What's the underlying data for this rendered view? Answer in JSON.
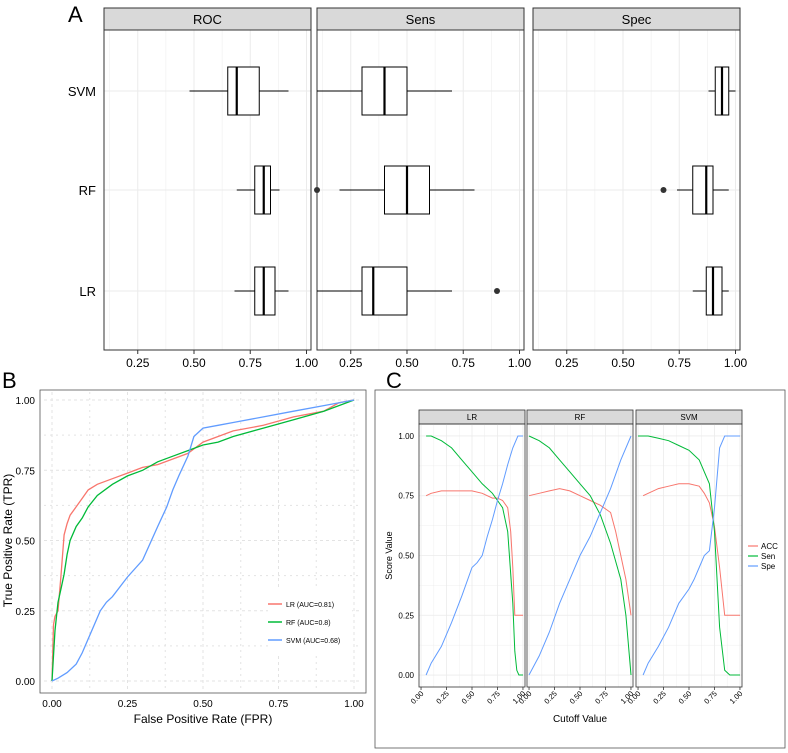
{
  "colors": {
    "strip_bg": "#d9d9d9",
    "grid": "#ebebeb",
    "lr": "#f8766d",
    "rf": "#00ba38",
    "svm": "#619cff",
    "box": "#000000"
  },
  "panel_labels": {
    "a": "A",
    "b": "B",
    "c": "C"
  },
  "chart_data": [
    {
      "id": "A",
      "type": "boxplot",
      "orientation": "horizontal",
      "facets": [
        "ROC",
        "Sens",
        "Spec"
      ],
      "categories": [
        "SVM",
        "RF",
        "LR"
      ],
      "xlim": [
        0.1,
        1.02
      ],
      "xticks": [
        "0.25",
        "0.50",
        "0.75",
        "1.00"
      ],
      "xtick_values": [
        0.25,
        0.5,
        0.75,
        1.0
      ],
      "boxes": {
        "ROC": {
          "SVM": {
            "whislo": 0.48,
            "q1": 0.65,
            "med": 0.69,
            "q3": 0.79,
            "whishi": 0.92,
            "outliers": []
          },
          "RF": {
            "whislo": 0.69,
            "q1": 0.77,
            "med": 0.81,
            "q3": 0.84,
            "whishi": 0.88,
            "outliers": []
          },
          "LR": {
            "whislo": 0.68,
            "q1": 0.77,
            "med": 0.81,
            "q3": 0.86,
            "whishi": 0.92,
            "outliers": []
          }
        },
        "Sens": {
          "SVM": {
            "whislo": 0.1,
            "q1": 0.3,
            "med": 0.4,
            "q3": 0.5,
            "whishi": 0.7,
            "outliers": []
          },
          "RF": {
            "whislo": 0.2,
            "q1": 0.4,
            "med": 0.5,
            "q3": 0.6,
            "whishi": 0.8,
            "outliers": [
              0.1
            ]
          },
          "LR": {
            "whislo": 0.1,
            "q1": 0.3,
            "med": 0.35,
            "q3": 0.5,
            "whishi": 0.7,
            "outliers": [
              0.9
            ]
          }
        },
        "Spec": {
          "SVM": {
            "whislo": 0.88,
            "q1": 0.91,
            "med": 0.94,
            "q3": 0.97,
            "whishi": 1.0,
            "outliers": []
          },
          "RF": {
            "whislo": 0.74,
            "q1": 0.81,
            "med": 0.87,
            "q3": 0.9,
            "whishi": 0.97,
            "outliers": [
              0.68
            ]
          },
          "LR": {
            "whislo": 0.81,
            "q1": 0.87,
            "med": 0.9,
            "q3": 0.94,
            "whishi": 0.97,
            "outliers": []
          }
        }
      }
    },
    {
      "id": "B",
      "type": "line",
      "xlabel": "False Positive Rate (FPR)",
      "ylabel": "True Positive Rate (TPR)",
      "xlim": [
        0,
        1
      ],
      "ylim": [
        0,
        1
      ],
      "ticks": [
        "0.00",
        "0.25",
        "0.50",
        "0.75",
        "1.00"
      ],
      "tick_values": [
        0,
        0.25,
        0.5,
        0.75,
        1.0
      ],
      "legend_position": "bottom-right",
      "series": [
        {
          "name": "LR (AUC=0.81)",
          "key": "lr",
          "x": [
            0,
            0.005,
            0.01,
            0.02,
            0.03,
            0.04,
            0.05,
            0.06,
            0.08,
            0.1,
            0.12,
            0.15,
            0.2,
            0.25,
            0.3,
            0.35,
            0.4,
            0.45,
            0.5,
            0.55,
            0.6,
            0.7,
            0.8,
            0.9,
            0.95,
            1.0
          ],
          "y": [
            0,
            0.2,
            0.23,
            0.25,
            0.38,
            0.52,
            0.56,
            0.59,
            0.62,
            0.65,
            0.68,
            0.7,
            0.72,
            0.74,
            0.76,
            0.77,
            0.79,
            0.81,
            0.85,
            0.87,
            0.89,
            0.91,
            0.94,
            0.96,
            0.99,
            1.0
          ]
        },
        {
          "name": "RF (AUC=0.8)",
          "key": "rf",
          "x": [
            0,
            0.01,
            0.02,
            0.03,
            0.04,
            0.05,
            0.06,
            0.08,
            0.1,
            0.12,
            0.15,
            0.2,
            0.25,
            0.3,
            0.35,
            0.4,
            0.45,
            0.5,
            0.55,
            0.6,
            0.7,
            0.8,
            0.9,
            0.95,
            1.0
          ],
          "y": [
            0,
            0.18,
            0.28,
            0.33,
            0.38,
            0.45,
            0.5,
            0.55,
            0.58,
            0.62,
            0.66,
            0.7,
            0.73,
            0.75,
            0.78,
            0.8,
            0.82,
            0.84,
            0.85,
            0.87,
            0.9,
            0.93,
            0.96,
            0.98,
            1.0
          ]
        },
        {
          "name": "SVM (AUC=0.68)",
          "key": "svm",
          "x": [
            0,
            0.02,
            0.05,
            0.08,
            0.1,
            0.12,
            0.14,
            0.16,
            0.18,
            0.2,
            0.25,
            0.3,
            0.35,
            0.38,
            0.4,
            0.42,
            0.45,
            0.47,
            0.5,
            0.55,
            0.6,
            0.7,
            0.8,
            0.9,
            1.0
          ],
          "y": [
            0,
            0.01,
            0.03,
            0.06,
            0.1,
            0.15,
            0.2,
            0.25,
            0.28,
            0.3,
            0.37,
            0.43,
            0.55,
            0.62,
            0.68,
            0.73,
            0.8,
            0.87,
            0.9,
            0.91,
            0.92,
            0.94,
            0.96,
            0.98,
            1.0
          ]
        }
      ]
    },
    {
      "id": "C",
      "type": "line",
      "facets": [
        "LR",
        "RF",
        "SVM"
      ],
      "xlabel": "Cutoff Value",
      "ylabel": "Score Value",
      "xlim": [
        -0.02,
        1.02
      ],
      "ylim": [
        -0.05,
        1.05
      ],
      "xticks": [
        "0.00",
        "0.25",
        "0.50",
        "0.75",
        "1.00"
      ],
      "yticks": [
        "0.00",
        "0.25",
        "0.50",
        "0.75",
        "1.00"
      ],
      "tick_values": [
        0,
        0.25,
        0.5,
        0.75,
        1.0
      ],
      "legend": [
        "ACC",
        "Sen",
        "Spe"
      ],
      "legend_keys": [
        "lr",
        "rf",
        "svm"
      ],
      "series": {
        "LR": {
          "ACC": {
            "x": [
              0.05,
              0.1,
              0.2,
              0.3,
              0.4,
              0.5,
              0.6,
              0.7,
              0.75,
              0.8,
              0.85,
              0.88,
              0.9,
              0.92,
              0.95,
              1.0
            ],
            "y": [
              0.75,
              0.76,
              0.77,
              0.77,
              0.77,
              0.77,
              0.76,
              0.74,
              0.74,
              0.73,
              0.7,
              0.6,
              0.45,
              0.25,
              0.25,
              0.25
            ]
          },
          "Sen": {
            "x": [
              0.05,
              0.1,
              0.2,
              0.3,
              0.4,
              0.5,
              0.6,
              0.7,
              0.75,
              0.8,
              0.85,
              0.9,
              0.92,
              0.94,
              0.96,
              1.0
            ],
            "y": [
              1.0,
              1.0,
              0.98,
              0.95,
              0.9,
              0.85,
              0.8,
              0.76,
              0.73,
              0.7,
              0.6,
              0.3,
              0.1,
              0.02,
              0.0,
              0.0
            ]
          },
          "Spe": {
            "x": [
              0.05,
              0.1,
              0.2,
              0.3,
              0.4,
              0.5,
              0.55,
              0.6,
              0.65,
              0.7,
              0.75,
              0.8,
              0.85,
              0.9,
              0.95,
              1.0
            ],
            "y": [
              0.0,
              0.05,
              0.12,
              0.22,
              0.33,
              0.45,
              0.47,
              0.5,
              0.58,
              0.65,
              0.73,
              0.8,
              0.88,
              0.95,
              1.0,
              1.0
            ]
          }
        },
        "RF": {
          "ACC": {
            "x": [
              0.0,
              0.1,
              0.2,
              0.3,
              0.4,
              0.5,
              0.6,
              0.7,
              0.8,
              0.85,
              0.9,
              0.95,
              1.0
            ],
            "y": [
              0.75,
              0.76,
              0.77,
              0.78,
              0.77,
              0.75,
              0.73,
              0.71,
              0.68,
              0.6,
              0.5,
              0.4,
              0.25
            ]
          },
          "Sen": {
            "x": [
              0.0,
              0.1,
              0.2,
              0.3,
              0.4,
              0.5,
              0.6,
              0.7,
              0.8,
              0.9,
              0.95,
              1.0
            ],
            "y": [
              1.0,
              0.98,
              0.95,
              0.9,
              0.85,
              0.8,
              0.75,
              0.67,
              0.55,
              0.4,
              0.25,
              0.0
            ]
          },
          "Spe": {
            "x": [
              0.0,
              0.1,
              0.2,
              0.3,
              0.4,
              0.5,
              0.6,
              0.7,
              0.8,
              0.9,
              1.0
            ],
            "y": [
              0.0,
              0.08,
              0.18,
              0.3,
              0.4,
              0.5,
              0.58,
              0.68,
              0.78,
              0.9,
              1.0
            ]
          }
        },
        "SVM": {
          "ACC": {
            "x": [
              0.05,
              0.1,
              0.2,
              0.3,
              0.4,
              0.5,
              0.6,
              0.65,
              0.7,
              0.75,
              0.8,
              0.85,
              1.0
            ],
            "y": [
              0.75,
              0.76,
              0.78,
              0.79,
              0.8,
              0.8,
              0.79,
              0.76,
              0.72,
              0.62,
              0.45,
              0.25,
              0.25
            ]
          },
          "Sen": {
            "x": [
              0.0,
              0.1,
              0.2,
              0.3,
              0.4,
              0.5,
              0.6,
              0.7,
              0.75,
              0.8,
              0.85,
              0.9,
              1.0
            ],
            "y": [
              1.0,
              1.0,
              0.99,
              0.98,
              0.96,
              0.94,
              0.9,
              0.8,
              0.6,
              0.2,
              0.02,
              0.0,
              0.0
            ]
          },
          "Spe": {
            "x": [
              0.05,
              0.1,
              0.2,
              0.3,
              0.4,
              0.5,
              0.55,
              0.6,
              0.65,
              0.7,
              0.75,
              0.8,
              0.85,
              1.0
            ],
            "y": [
              0.0,
              0.05,
              0.12,
              0.2,
              0.3,
              0.36,
              0.4,
              0.45,
              0.5,
              0.52,
              0.7,
              0.95,
              1.0,
              1.0
            ]
          }
        }
      }
    }
  ]
}
